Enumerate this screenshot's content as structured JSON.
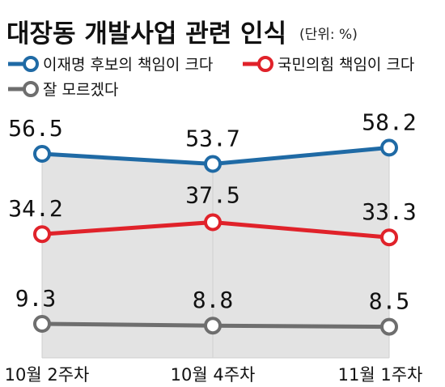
{
  "chart_data": {
    "type": "line",
    "title": "대장동 개발사업 관련 인식",
    "unit_note": "(단위: %)",
    "categories": [
      "10월 2주차",
      "10월 4주차",
      "11월 1주차"
    ],
    "series": [
      {
        "name": "이재명 후보의 책임이 크다",
        "values": [
          56.5,
          53.7,
          58.2
        ],
        "color": "#1f6aa5",
        "labels": [
          "56.5",
          "53.7",
          "58.2"
        ]
      },
      {
        "name": "국민의힘 책임이 크다",
        "values": [
          34.2,
          37.5,
          33.3
        ],
        "color": "#e0222a",
        "labels": [
          "34.2",
          "37.5",
          "33.3"
        ]
      },
      {
        "name": "잘 모르겠다",
        "values": [
          9.3,
          8.8,
          8.5
        ],
        "color": "#6e6e6e",
        "labels": [
          "9.3",
          "8.8",
          "8.5"
        ]
      }
    ],
    "area_fill": "#e3e3e3",
    "grid": false,
    "legend_position": "top"
  }
}
